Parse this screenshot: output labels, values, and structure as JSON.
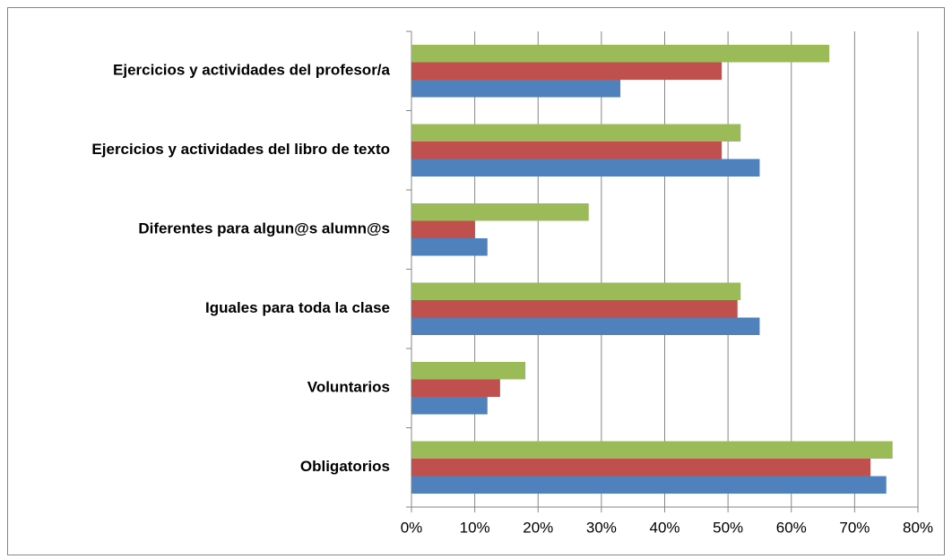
{
  "chart_data": {
    "type": "bar",
    "orientation": "horizontal",
    "categories": [
      "Ejercicios y actividades del profesor/a",
      "Ejercicios y actividades del libro de texto",
      "Diferentes para algun@s alumn@s",
      "Iguales para toda la clase",
      "Voluntarios",
      "Obligatorios"
    ],
    "series": [
      {
        "color": "#4f81bd",
        "values": [
          33,
          55,
          12,
          55,
          12,
          75
        ]
      },
      {
        "color": "#c0504d",
        "values": [
          49,
          49,
          10,
          51.5,
          14,
          72.5
        ]
      },
      {
        "color": "#9bbb59",
        "values": [
          66,
          52,
          28,
          52,
          18,
          76
        ]
      }
    ],
    "xlim": [
      0,
      80
    ],
    "xticks": [
      {
        "value": 0,
        "label": "0%"
      },
      {
        "value": 10,
        "label": "10%"
      },
      {
        "value": 20,
        "label": "20%"
      },
      {
        "value": 30,
        "label": "30%"
      },
      {
        "value": 40,
        "label": "40%"
      },
      {
        "value": 50,
        "label": "50%"
      },
      {
        "value": 60,
        "label": "60%"
      },
      {
        "value": 70,
        "label": "70%"
      },
      {
        "value": 80,
        "label": "80%"
      }
    ],
    "grid": true
  }
}
